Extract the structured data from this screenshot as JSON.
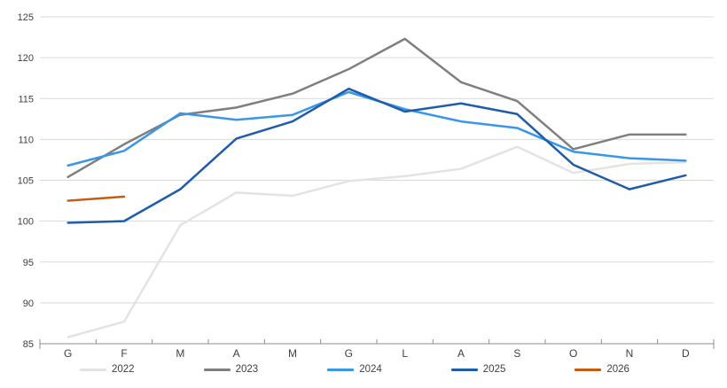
{
  "chart_data": {
    "type": "line",
    "title": "",
    "xlabel": "",
    "ylabel": "",
    "x_categories": [
      "G",
      "F",
      "M",
      "A",
      "M",
      "G",
      "L",
      "A",
      "S",
      "O",
      "N",
      "D"
    ],
    "y_ticks": [
      85,
      90,
      95,
      100,
      105,
      110,
      115,
      120,
      125
    ],
    "ylim": [
      85,
      125
    ],
    "grid": "horizontal",
    "legend_position": "bottom",
    "series": [
      {
        "name": "2022",
        "color": "#E3E3E3",
        "values": [
          85.8,
          87.7,
          99.5,
          103.5,
          103.1,
          104.9,
          105.5,
          106.4,
          109.1,
          105.9,
          107.0,
          107.2
        ]
      },
      {
        "name": "2023",
        "color": "#7F7F7F",
        "values": [
          105.4,
          109.4,
          113.0,
          113.9,
          115.6,
          118.6,
          122.3,
          117.0,
          114.7,
          108.8,
          110.6,
          110.6
        ]
      },
      {
        "name": "2024",
        "color": "#3A96E8",
        "values": [
          106.8,
          108.6,
          113.2,
          112.4,
          113.0,
          115.8,
          113.7,
          112.2,
          111.4,
          108.5,
          107.7,
          107.4
        ]
      },
      {
        "name": "2025",
        "color": "#1F5CA9",
        "values": [
          99.8,
          100.0,
          103.9,
          110.1,
          112.2,
          116.2,
          113.4,
          114.4,
          113.1,
          106.9,
          103.9,
          105.6
        ]
      },
      {
        "name": "2026",
        "color": "#C55A11",
        "values": [
          102.5,
          103.0
        ]
      }
    ],
    "colors": {
      "gridline": "#D9D9D9",
      "axis": "#8C8C8C",
      "tick_label": "#404040"
    }
  }
}
